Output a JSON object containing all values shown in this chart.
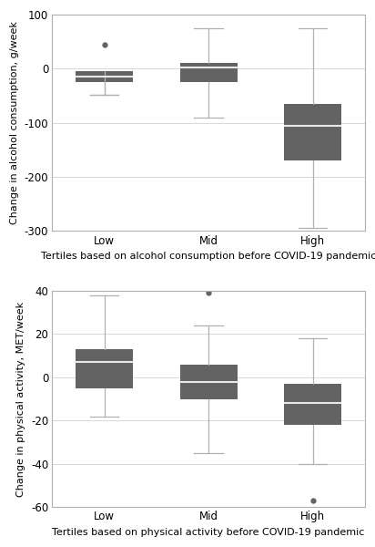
{
  "top": {
    "ylabel": "Change in alcohol consumption, g/week",
    "xlabel": "Tertiles based on alcohol consumption before COVID-19 pandemic",
    "categories": [
      "Low",
      "Mid",
      "High"
    ],
    "ylim": [
      -300,
      100
    ],
    "yticks": [
      100,
      0,
      -100,
      -200,
      -300
    ],
    "boxes": [
      {
        "q1": -25,
        "median": -15,
        "q3": -5,
        "whislo": -48,
        "whishi": -48,
        "fliers": [
          45
        ]
      },
      {
        "q1": -25,
        "median": 2,
        "q3": 10,
        "whislo": -90,
        "whishi": 75,
        "fliers": []
      },
      {
        "q1": -170,
        "median": -105,
        "q3": -65,
        "whislo": -295,
        "whishi": 75,
        "fliers": []
      }
    ]
  },
  "bottom": {
    "ylabel": "Change in physical activity, MET/week",
    "xlabel": "Tertiles based on physical activity before COVID-19 pandemic",
    "categories": [
      "Low",
      "Mid",
      "High"
    ],
    "ylim": [
      -60,
      40
    ],
    "yticks": [
      40,
      20,
      0,
      -20,
      -40,
      -60
    ],
    "boxes": [
      {
        "q1": -5,
        "median": 7,
        "q3": 13,
        "whislo": -18,
        "whishi": 38,
        "fliers": []
      },
      {
        "q1": -10,
        "median": -2,
        "q3": 6,
        "whislo": -35,
        "whishi": 24,
        "fliers": [
          39
        ]
      },
      {
        "q1": -22,
        "median": -12,
        "q3": -3,
        "whislo": -40,
        "whishi": 18,
        "fliers": [
          -57
        ]
      }
    ]
  },
  "box_color": "#636363",
  "median_color": "#e8e8e8",
  "whisker_color": "#b0b0b0",
  "flier_color": "#636363",
  "grid_color": "#d8d8d8",
  "bg_color": "#ffffff",
  "font_size": 8.5,
  "label_font_size": 8,
  "box_width": 0.55
}
